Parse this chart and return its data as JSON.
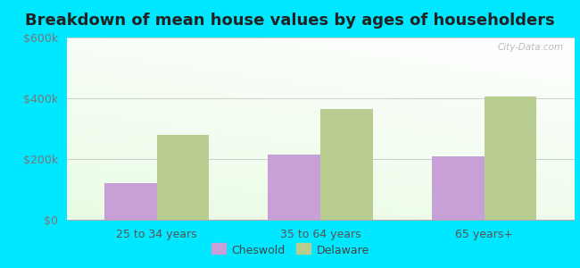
{
  "title": "Breakdown of mean house values by ages of householders",
  "categories": [
    "25 to 34 years",
    "35 to 64 years",
    "65 years+"
  ],
  "cheswold_values": [
    120000,
    215000,
    210000
  ],
  "delaware_values": [
    280000,
    365000,
    405000
  ],
  "ylim": [
    0,
    600000
  ],
  "ytick_labels": [
    "$0",
    "$200k",
    "$400k",
    "$600k"
  ],
  "ytick_values": [
    0,
    200000,
    400000,
    600000
  ],
  "cheswold_color": "#c8a0d8",
  "delaware_color": "#b8cc90",
  "background_outer": "#00e8ff",
  "title_fontsize": 13,
  "bar_width": 0.32,
  "legend_labels": [
    "Cheswold",
    "Delaware"
  ],
  "watermark": "City-Data.com"
}
